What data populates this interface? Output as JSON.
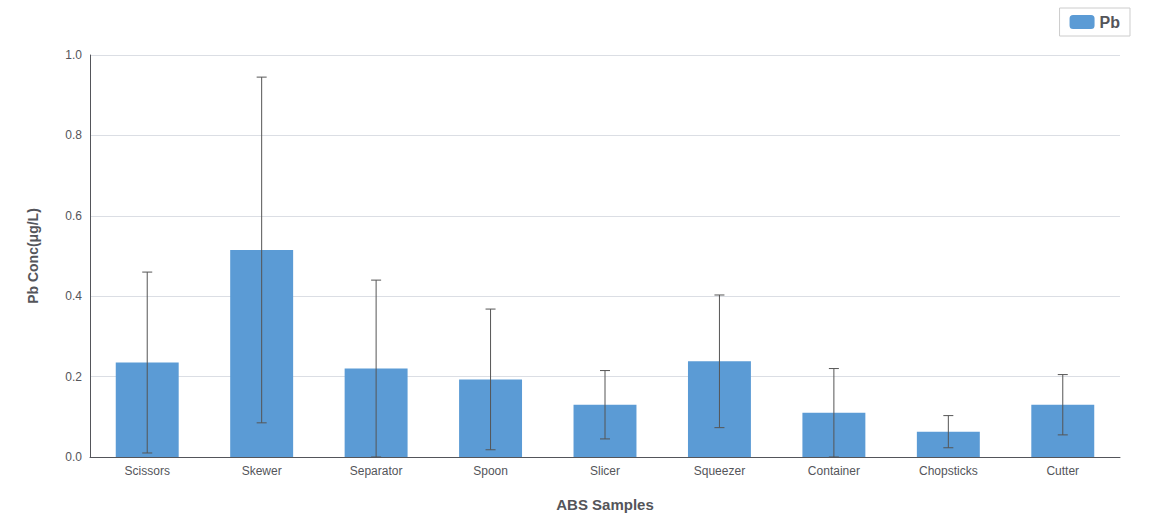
{
  "chart_data": {
    "type": "bar",
    "xlabel": "ABS Samples",
    "ylabel": "Pb Conc(μg/L)",
    "categories": [
      "Scissors",
      "Skewer",
      "Separator",
      "Spoon",
      "Slicer",
      "Squeezer",
      "Container",
      "Chopsticks",
      "Cutter"
    ],
    "series": [
      {
        "name": "Pb",
        "color": "#5B9BD5",
        "values": [
          0.235,
          0.515,
          0.22,
          0.193,
          0.13,
          0.238,
          0.11,
          0.063,
          0.13
        ],
        "errors": [
          0.225,
          0.43,
          0.22,
          0.175,
          0.085,
          0.165,
          0.11,
          0.04,
          0.075
        ]
      }
    ],
    "ylim": [
      0,
      1
    ],
    "yticks": [
      {
        "value": 0,
        "label": "0.0"
      },
      0.2,
      0.4,
      0.6,
      0.8,
      {
        "value": 1,
        "label": "1.0"
      }
    ],
    "grid": true,
    "legend": "upper right"
  }
}
